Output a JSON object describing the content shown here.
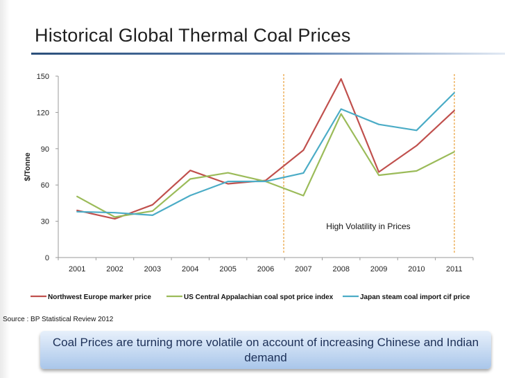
{
  "header": {
    "title": "Historical Global Thermal Coal Prices"
  },
  "chart_data": {
    "type": "line",
    "title": "",
    "ylabel": "$/Tonne",
    "xlabel": "",
    "ylim": [
      0,
      150
    ],
    "yticks": [
      0,
      30,
      60,
      90,
      120,
      150
    ],
    "categories": [
      "2001",
      "2002",
      "2003",
      "2004",
      "2005",
      "2006",
      "2007",
      "2008",
      "2009",
      "2010",
      "2011"
    ],
    "series": [
      {
        "name": "Northwest Europe marker price",
        "color": "#c0504d",
        "values": [
          39,
          32,
          43.6,
          72,
          61,
          63.8,
          88.8,
          147.7,
          70.7,
          92.5,
          121.5
        ]
      },
      {
        "name": "US Central Appalachian coal spot price index",
        "color": "#9bbb59",
        "values": [
          50.5,
          33.5,
          38.5,
          65,
          70.1,
          62.9,
          51.2,
          118.8,
          68.1,
          71.6,
          87.4
        ]
      },
      {
        "name": "Japan steam coal import cif price",
        "color": "#4bacc6",
        "values": [
          37.9,
          37.1,
          35,
          51.3,
          62.9,
          63,
          69.9,
          122.8,
          110.1,
          105.2,
          136.2
        ]
      }
    ],
    "annotation": "High Volatility in Prices",
    "legend_position": "bottom",
    "grid": false
  },
  "source": "Source :  BP Statistical Review 2012",
  "callout": "Coal Prices are turning more volatile on account of increasing Chinese and Indian demand"
}
